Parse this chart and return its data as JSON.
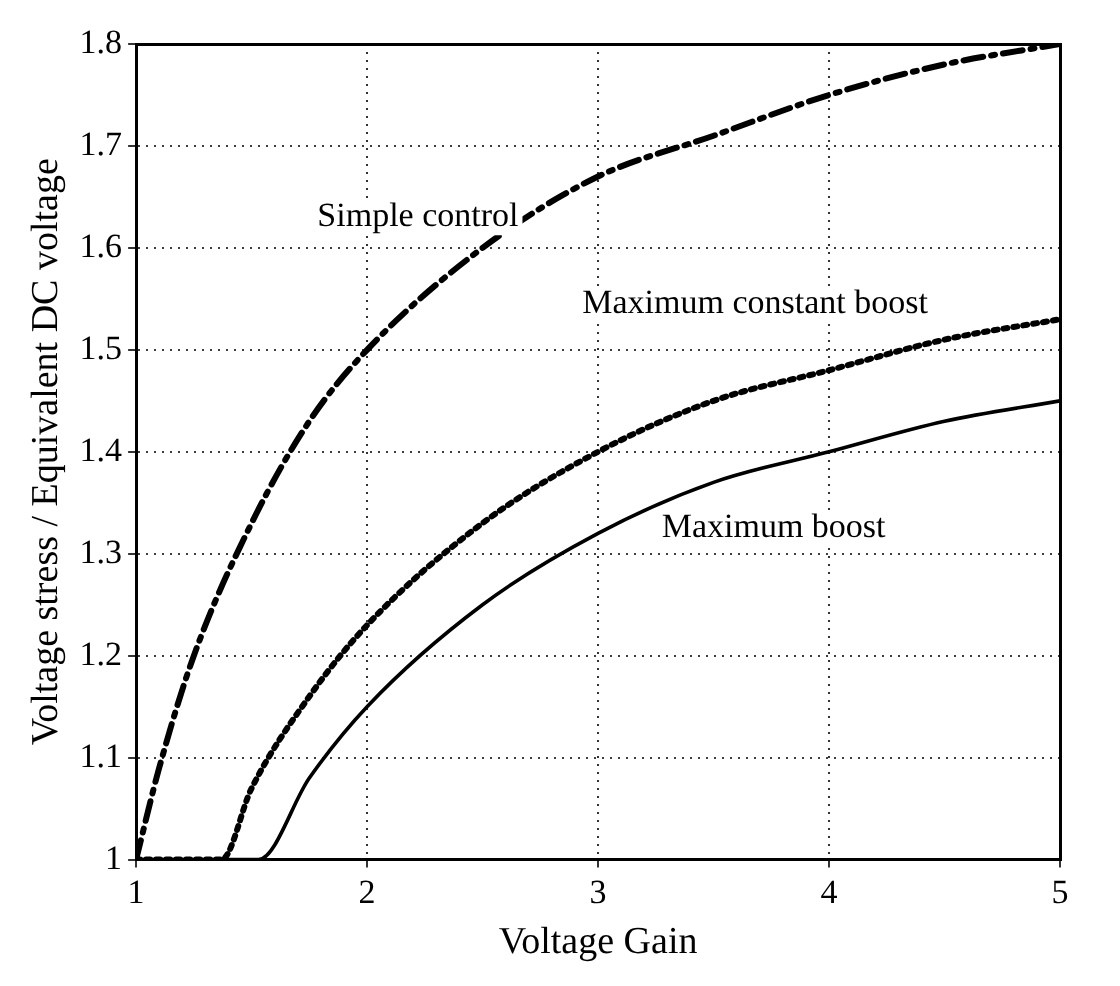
{
  "chart_data": {
    "type": "line",
    "xlabel": "Voltage Gain",
    "ylabel": "Voltage stress / Equivalent DC voltage",
    "xlim": [
      1,
      5
    ],
    "xticks": [
      1,
      2,
      3,
      4,
      5
    ],
    "ylim": [
      1,
      1.8
    ],
    "yticks": [
      1,
      1.1,
      1.2,
      1.3,
      1.4,
      1.5,
      1.6,
      1.7,
      1.8
    ],
    "grid": true,
    "series": [
      {
        "name": "Simple control",
        "color": "#000000",
        "line_style": "dashed",
        "x": [
          1,
          1.1,
          1.25,
          1.5,
          1.75,
          2,
          2.5,
          3,
          3.5,
          4,
          4.5,
          5
        ],
        "values": [
          1,
          1.09,
          1.2,
          1.33,
          1.43,
          1.5,
          1.6,
          1.67,
          1.71,
          1.75,
          1.78,
          1.8
        ]
      },
      {
        "name": "Maximum constant boost",
        "color": "#000000",
        "line_style": "dotted",
        "x": [
          1,
          1.37,
          1.5,
          1.75,
          2,
          2.5,
          3,
          3.5,
          4,
          4.5,
          5
        ],
        "values": [
          1,
          1,
          1.07,
          1.16,
          1.23,
          1.33,
          1.4,
          1.45,
          1.48,
          1.51,
          1.53
        ]
      },
      {
        "name": "Maximum boost",
        "color": "#000000",
        "line_style": "solid",
        "x": [
          1,
          1.53,
          1.75,
          2,
          2.5,
          3,
          3.5,
          4,
          4.5,
          5
        ],
        "values": [
          1,
          1,
          1.08,
          1.15,
          1.25,
          1.32,
          1.37,
          1.4,
          1.43,
          1.45
        ]
      }
    ]
  }
}
